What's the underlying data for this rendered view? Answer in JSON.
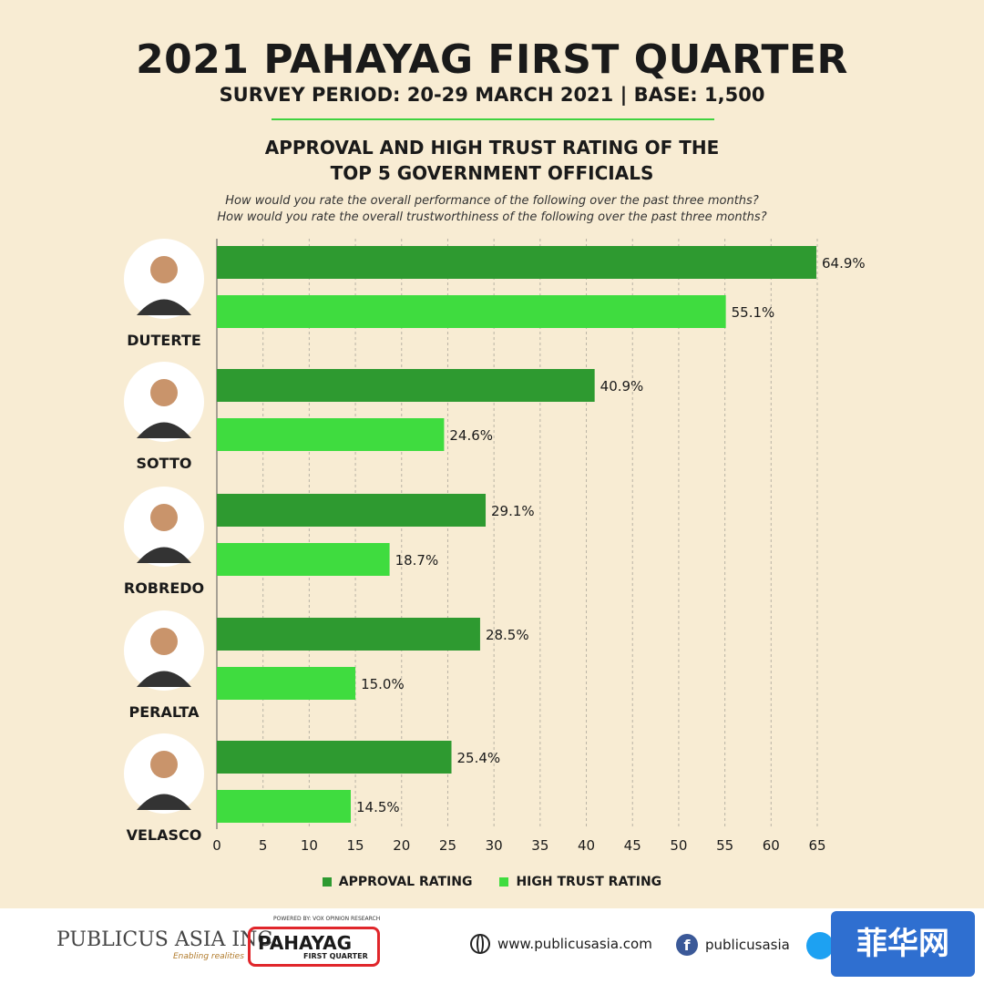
{
  "header": {
    "title": "2021 PAHAYAG FIRST QUARTER",
    "subtitle": "SURVEY PERIOD: 20-29 MARCH 2021 | BASE: 1,500",
    "chart_title_line1": "APPROVAL AND HIGH TRUST RATING OF THE",
    "chart_title_line2": "TOP 5 GOVERNMENT OFFICIALS",
    "question1": "How would you rate the overall performance of the following over the past three months?",
    "question2": "How would you rate the overall trustworthiness of the following over the past three months?"
  },
  "colors": {
    "approval": "#2e9a30",
    "trust": "#3fdc3f",
    "divider": "#3fd23f"
  },
  "chart_data": {
    "type": "bar",
    "orientation": "horizontal",
    "categories": [
      "DUTERTE",
      "SOTTO",
      "ROBREDO",
      "PERALTA",
      "VELASCO"
    ],
    "series": [
      {
        "name": "APPROVAL RATING",
        "values": [
          64.9,
          40.9,
          29.1,
          28.5,
          25.4
        ]
      },
      {
        "name": "HIGH TRUST RATING",
        "values": [
          55.1,
          24.6,
          18.7,
          15.0,
          14.5
        ]
      }
    ],
    "value_labels": [
      [
        "64.9%",
        "40.9%",
        "29.1%",
        "28.5%",
        "25.4%"
      ],
      [
        "55.1%",
        "24.6%",
        "18.7%",
        "15.0%",
        "14.5%"
      ]
    ],
    "xlim": [
      0,
      65
    ],
    "xticks": [
      0,
      5,
      10,
      15,
      20,
      25,
      30,
      35,
      40,
      45,
      50,
      55,
      60,
      65
    ],
    "grid": "vertical dashed",
    "legend_position": "bottom"
  },
  "footer": {
    "publicus_name": "PUBLICUS ASIA INC.",
    "publicus_tagline": "Enabling realities",
    "pahayag_logo": "PAHAYAG",
    "pahayag_sub": "FIRST QUARTER",
    "pahayag_powered": "POWERED BY: VOX OPINION RESEARCH",
    "website": "www.publicusasia.com",
    "facebook": "publicusasia",
    "watermark": "菲华网"
  },
  "icons": {
    "globe": "globe-icon",
    "facebook": "facebook-icon",
    "twitter": "twitter-icon"
  }
}
